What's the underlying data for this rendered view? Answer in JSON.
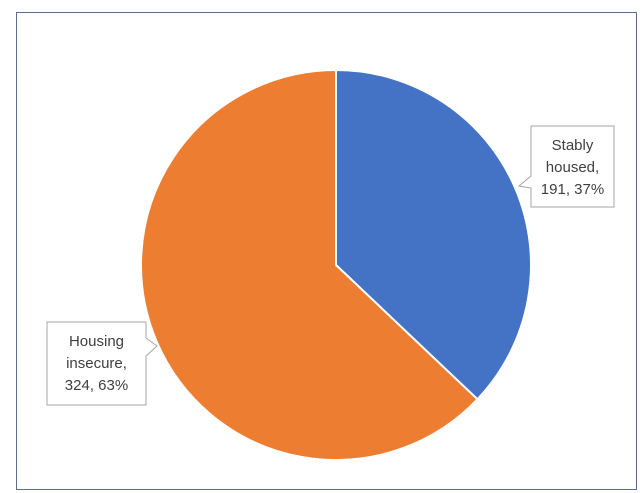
{
  "chart_data": {
    "type": "pie",
    "title": "",
    "legend": "none",
    "slices": [
      {
        "name": "Stably housed",
        "value": 191,
        "percent": "37%",
        "color": "#4472C4",
        "label_lines": [
          "Stably",
          "housed,",
          "191, 37%"
        ]
      },
      {
        "name": "Housing insecure",
        "value": 324,
        "percent": "63%",
        "color": "#ED7D31",
        "label_lines": [
          "Housing",
          "insecure,",
          "324, 63%"
        ]
      }
    ]
  }
}
